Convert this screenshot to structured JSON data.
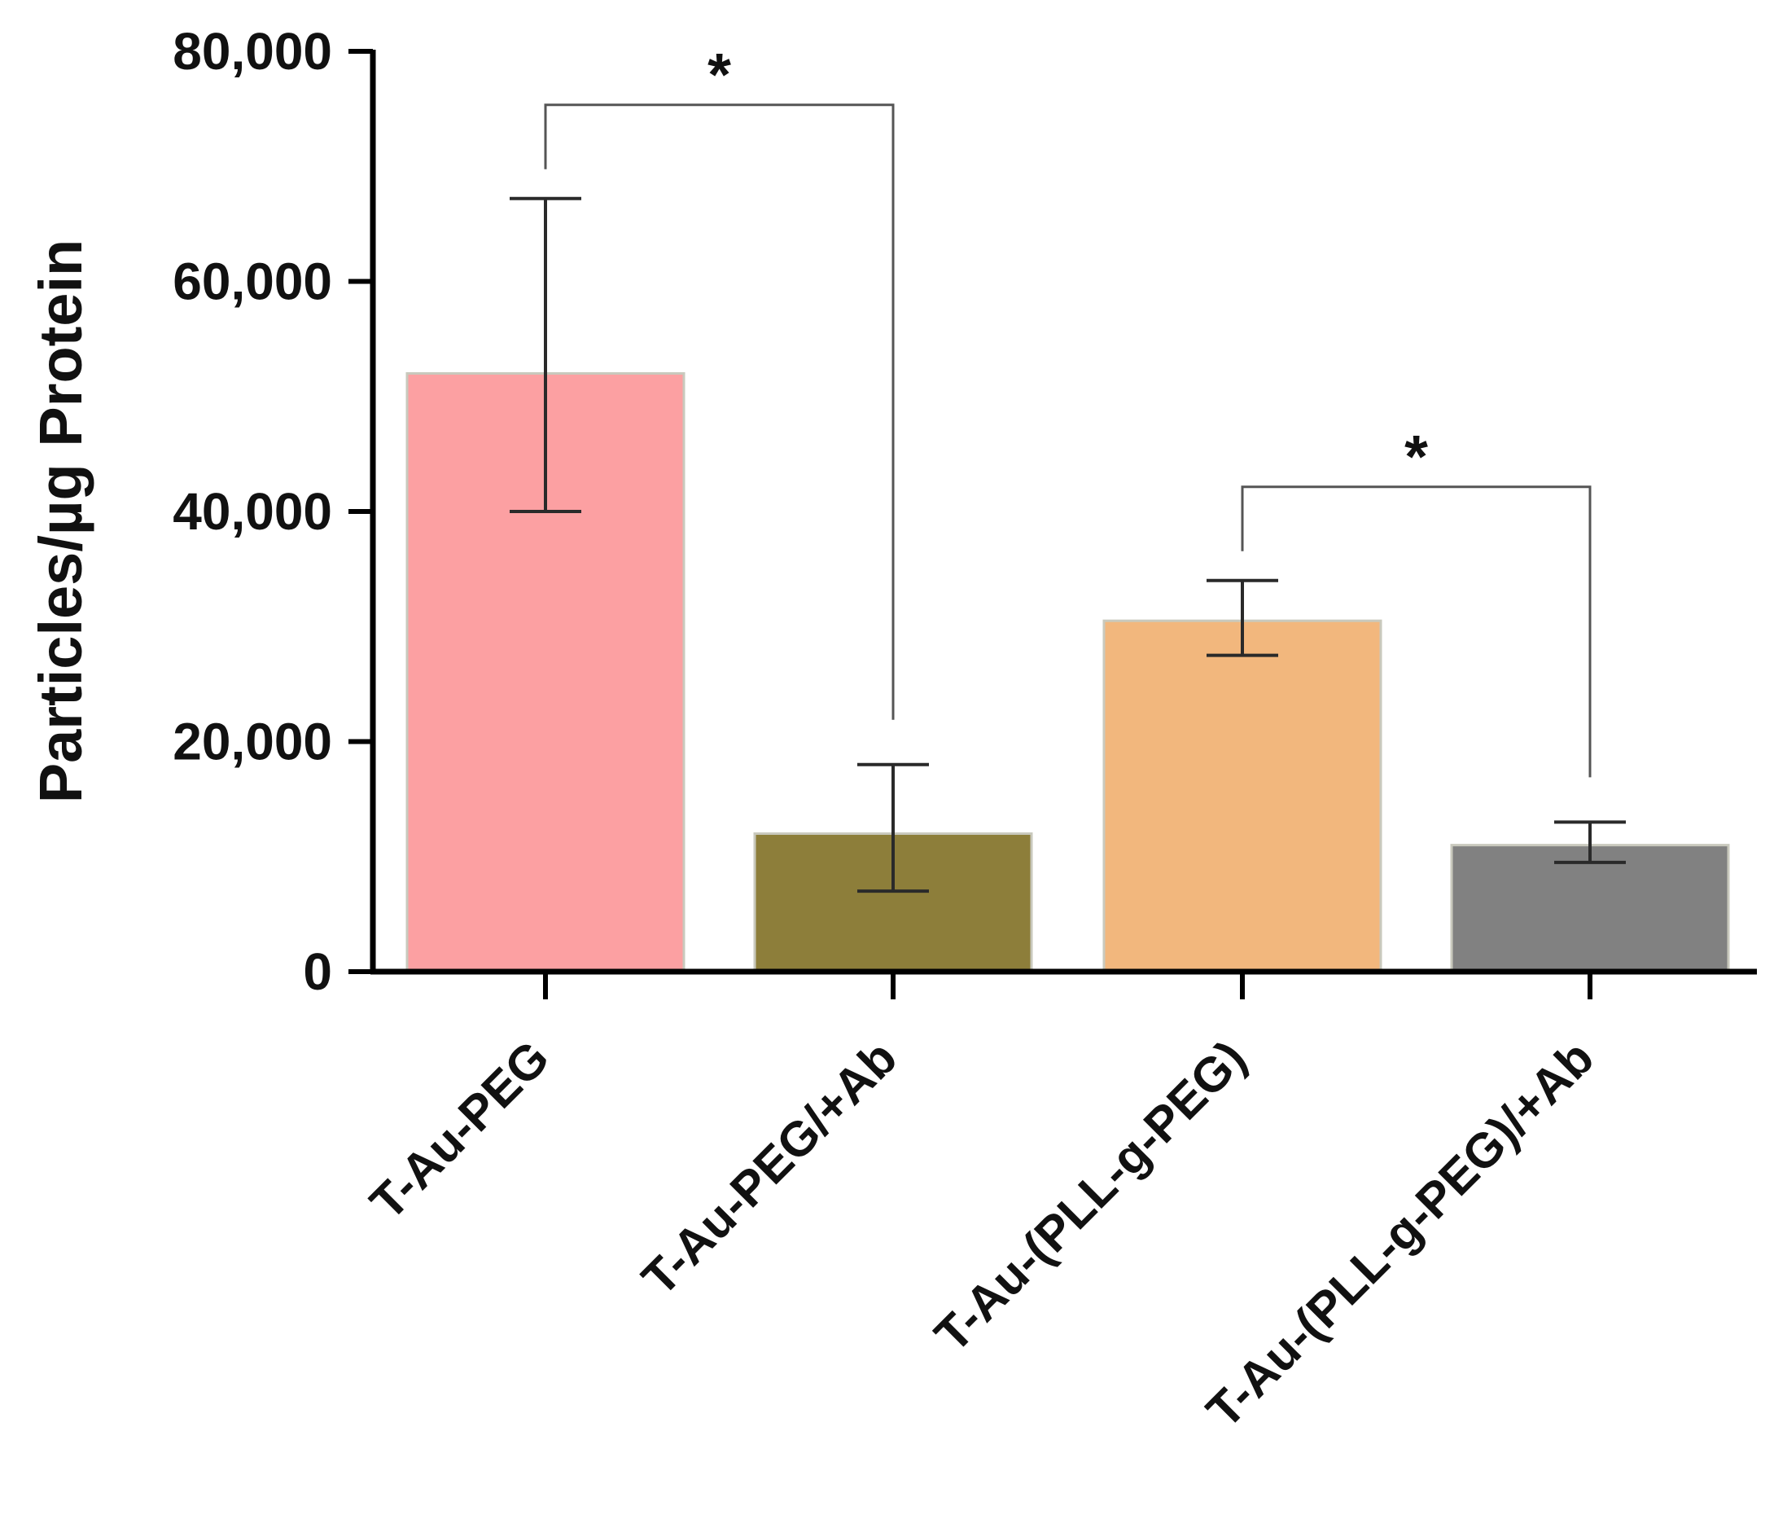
{
  "chart_data": {
    "type": "bar",
    "title": "",
    "xlabel": "",
    "ylabel": "Particles/µg Protein",
    "ylim": [
      0,
      80000
    ],
    "yticks": [
      0,
      20000,
      40000,
      60000,
      80000
    ],
    "ytick_labels": [
      "0",
      "20,000",
      "40,000",
      "60,000",
      "80,000"
    ],
    "grid": false,
    "legend": "none",
    "categories": [
      "T-Au-PEG",
      "T-Au-PEG/+Ab",
      "T-Au-(PLL-g-PEG)",
      "T-Au-(PLL-g-PEG)/+Ab"
    ],
    "values": [
      52000,
      12000,
      30500,
      11000
    ],
    "error_high": [
      67200,
      18000,
      34000,
      13000
    ],
    "error_low": [
      40000,
      7000,
      27500,
      9500
    ],
    "colors": [
      "#fca0a2",
      "#8d7e3a",
      "#f2b77d",
      "#818181"
    ],
    "significance": [
      {
        "from": 0,
        "to": 1,
        "label": "*"
      },
      {
        "from": 2,
        "to": 3,
        "label": "*"
      }
    ]
  }
}
